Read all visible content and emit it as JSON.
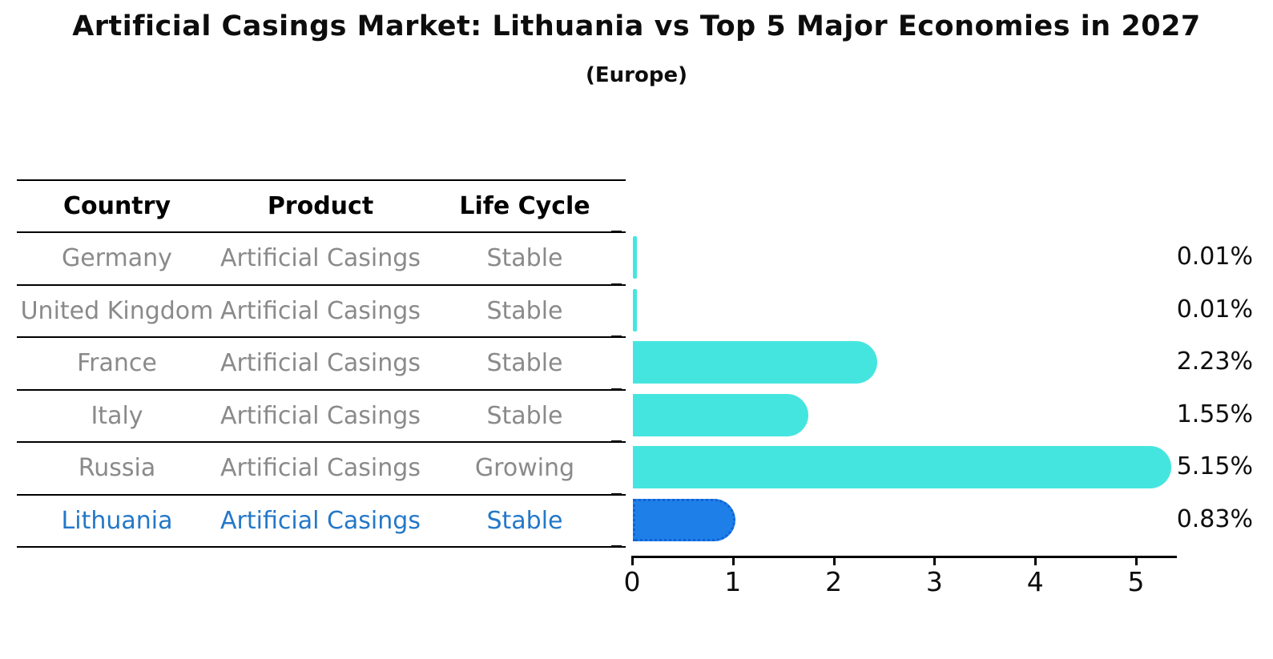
{
  "title": "Artificial Casings Market: Lithuania vs Top 5 Major Economies in 2027",
  "subtitle": "(Europe)",
  "colors": {
    "bar_default": "#45e5df",
    "bar_highlight": "#1e7fe8",
    "bar_highlight_border": "#1062d8",
    "highlight_text": "#2478c8",
    "row_text": "#8a8a8a",
    "header_text": "#000000",
    "axis_color": "#000000"
  },
  "table": {
    "columns": [
      "Country",
      "Product",
      "Life Cycle"
    ],
    "rows": [
      {
        "country": "Germany",
        "product": "Artificial Casings",
        "life_cycle": "Stable",
        "highlight": false
      },
      {
        "country": "United Kingdom",
        "product": "Artificial Casings",
        "life_cycle": "Stable",
        "highlight": false
      },
      {
        "country": "France",
        "product": "Artificial Casings",
        "life_cycle": "Stable",
        "highlight": false
      },
      {
        "country": "Italy",
        "product": "Artificial Casings",
        "life_cycle": "Stable",
        "highlight": false
      },
      {
        "country": "Russia",
        "product": "Artificial Casings",
        "life_cycle": "Growing",
        "highlight": false
      },
      {
        "country": "Lithuania",
        "product": "Artificial Casings",
        "life_cycle": "Stable",
        "highlight": true
      }
    ]
  },
  "chart_data": {
    "type": "bar",
    "orientation": "horizontal",
    "title": "Artificial Casings Market: Lithuania vs Top 5 Major Economies in 2027 (Europe)",
    "categories": [
      "Germany",
      "United Kingdom",
      "France",
      "Italy",
      "Russia",
      "Lithuania"
    ],
    "values": [
      0.01,
      0.01,
      2.23,
      1.55,
      5.15,
      0.83
    ],
    "data_labels": [
      "0.01%",
      "0.01%",
      "2.23%",
      "1.55%",
      "5.15%",
      "0.83%"
    ],
    "highlight_index": 5,
    "xlabel": "",
    "ylabel": "",
    "xlim": [
      0,
      5.4
    ],
    "xticks": [
      "0",
      "1",
      "2",
      "3",
      "4",
      "5"
    ],
    "grid": false,
    "legend": false
  }
}
